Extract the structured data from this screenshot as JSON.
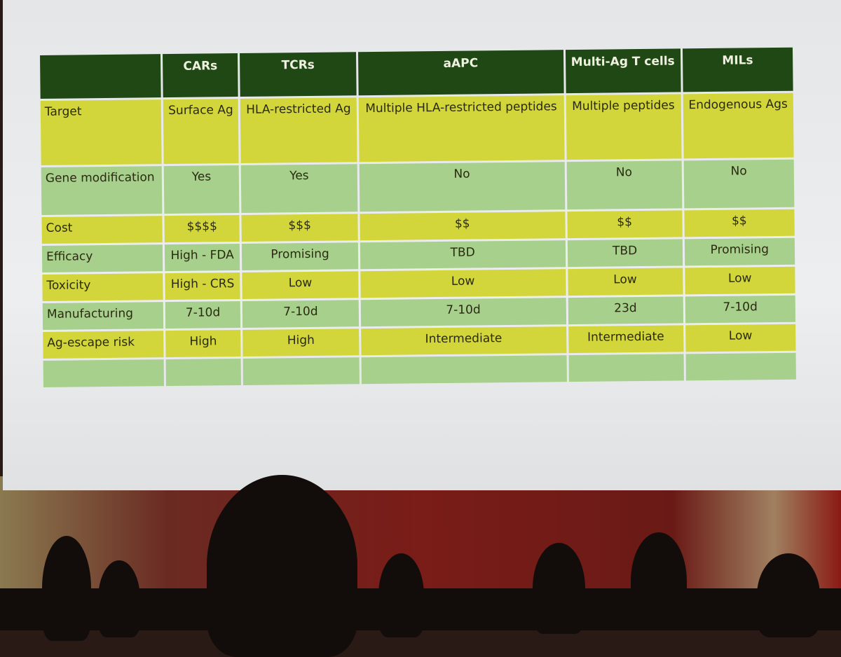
{
  "table": {
    "header": [
      "CARs",
      "TCRs",
      "aAPC",
      "Multi-Ag T cells",
      "MILs"
    ],
    "rows": [
      [
        "Target",
        "Surface Ag",
        "HLA-restricted Ag",
        "Multiple HLA-restricted peptides",
        "Multiple peptides",
        "Endogenous Ags"
      ],
      [
        "Gene modification",
        "Yes",
        "Yes",
        "No",
        "No",
        "No"
      ],
      [
        "Cost",
        "$$$$",
        "$$$",
        "$$",
        "$$",
        "$$"
      ],
      [
        "Efficacy",
        "High - FDA",
        "Promising",
        "TBD",
        "TBD",
        "Promising"
      ],
      [
        "Toxicity",
        "High - CRS",
        "Low",
        "Low",
        "Low",
        "Low"
      ],
      [
        "Manufacturing",
        "7-10d",
        "7-10d",
        "7-10d",
        "23d",
        "7-10d"
      ],
      [
        "Ag-escape risk",
        "High",
        "High",
        "Intermediate",
        "Intermediate",
        "Low"
      ]
    ]
  }
}
